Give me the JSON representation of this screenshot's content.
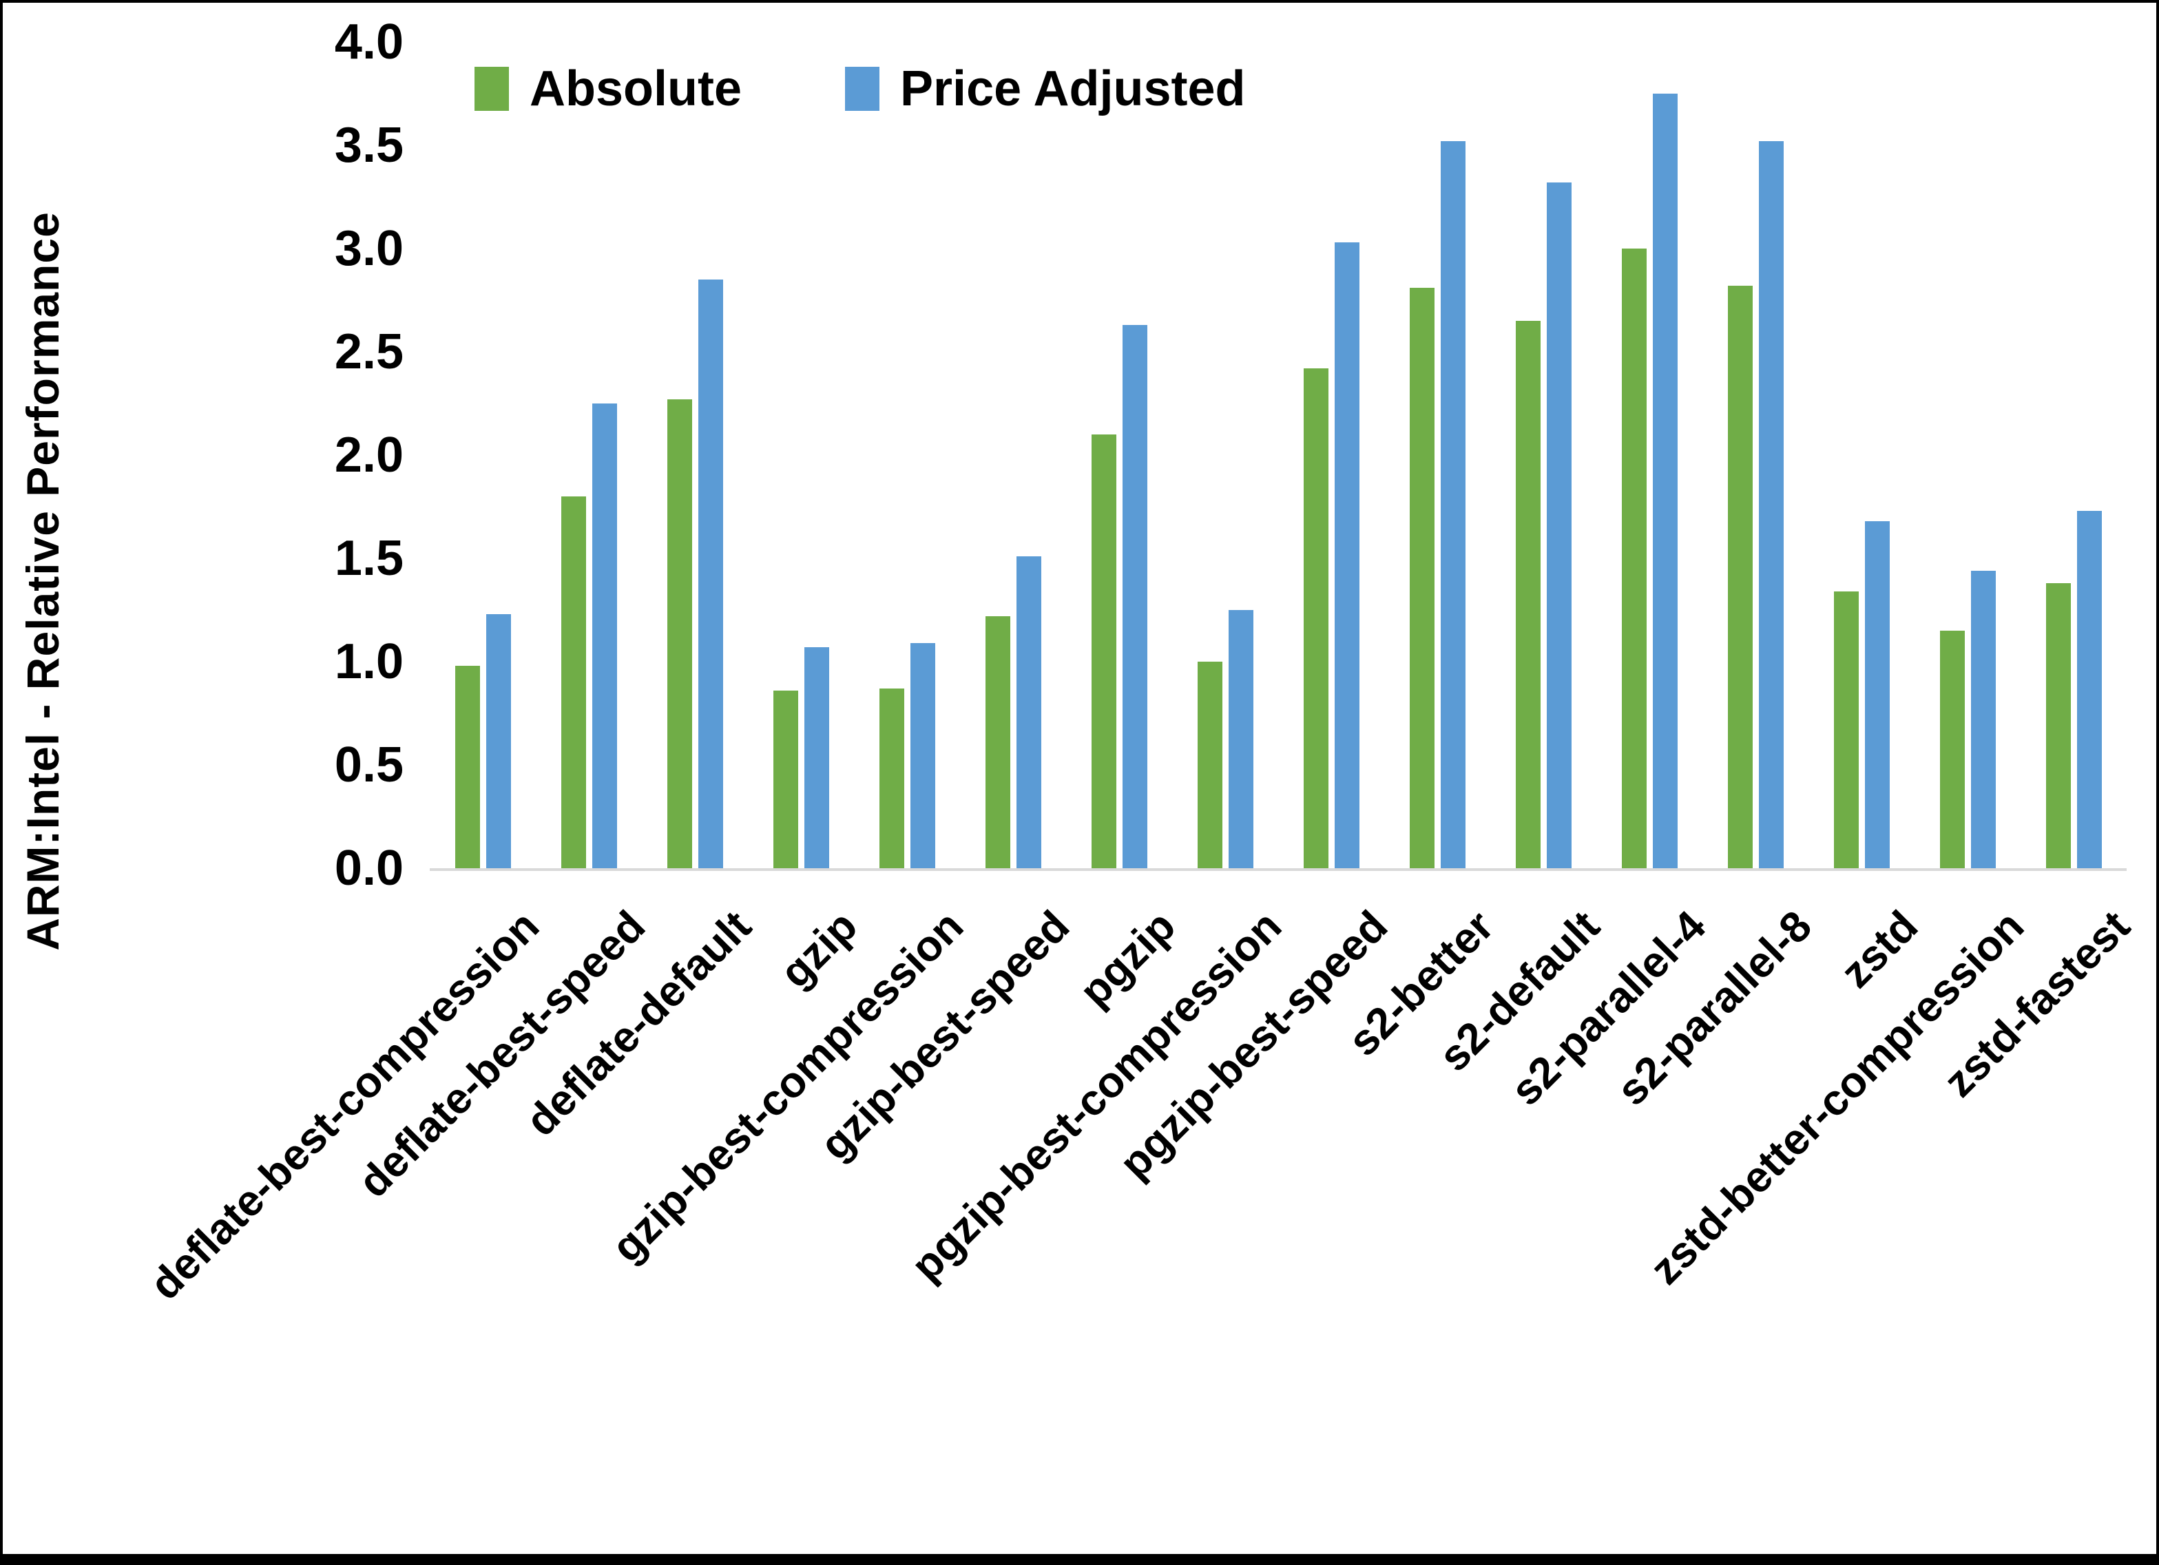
{
  "colors": {
    "absolute": "#70AD47",
    "price_adjusted": "#5B9BD5",
    "axis_line": "#D9D9D9",
    "text": "#000000"
  },
  "legend": {
    "absolute_label": "Absolute",
    "price_adjusted_label": "Price Adjusted"
  },
  "chart_data": {
    "type": "bar",
    "title": "",
    "xlabel": "",
    "ylabel": "ARM:Intel - Relative Performance",
    "ylim": [
      0.0,
      4.0
    ],
    "ytick_step": 0.5,
    "yticks": [
      0.0,
      0.5,
      1.0,
      1.5,
      2.0,
      2.5,
      3.0,
      3.5,
      4.0
    ],
    "grid": false,
    "legend_position": "top-center",
    "categories": [
      "deflate-best-compression",
      "deflate-best-speed",
      "deflate-default",
      "gzip",
      "gzip-best-compression",
      "gzip-best-speed",
      "pgzip",
      "pgzip-best-compression",
      "pgzip-best-speed",
      "s2-better",
      "s2-default",
      "s2-parallel-4",
      "s2-parallel-8",
      "zstd",
      "zstd-better-compression",
      "zstd-fastest"
    ],
    "series": [
      {
        "name": "Absolute",
        "color_key": "absolute",
        "values": [
          0.98,
          1.8,
          2.27,
          0.86,
          0.87,
          1.22,
          2.1,
          1.0,
          2.42,
          2.81,
          2.65,
          3.0,
          2.82,
          1.34,
          1.15,
          1.38
        ]
      },
      {
        "name": "Price Adjusted",
        "color_key": "price_adjusted",
        "values": [
          1.23,
          2.25,
          2.85,
          1.07,
          1.09,
          1.51,
          2.63,
          1.25,
          3.03,
          3.52,
          3.32,
          3.75,
          3.52,
          1.68,
          1.44,
          1.73
        ]
      }
    ]
  }
}
